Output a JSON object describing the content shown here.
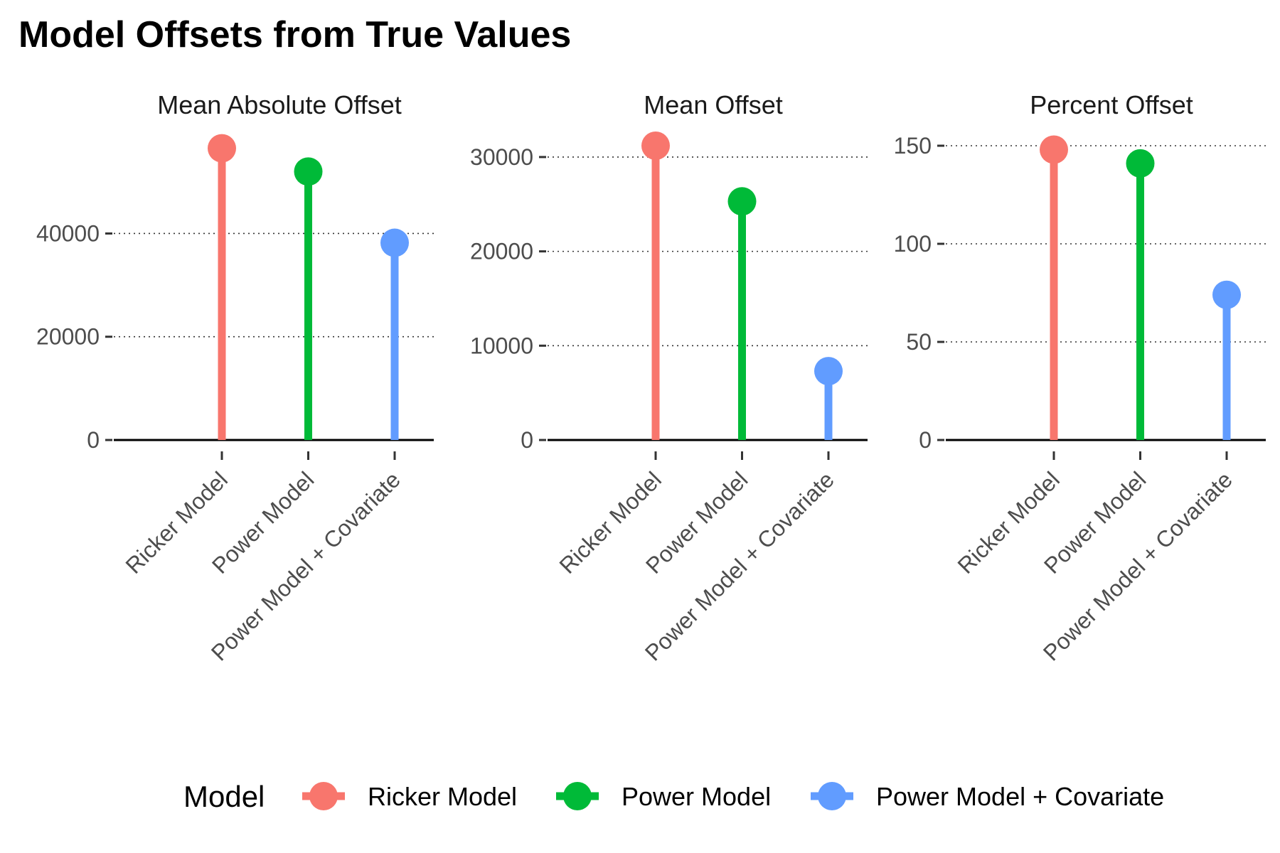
{
  "title": "Model Offsets from True Values",
  "chart_data": {
    "type": "lollipop",
    "categories": [
      "Ricker Model",
      "Power Model",
      "Power Model + Covariate"
    ],
    "colors": {
      "Ricker Model": "#F8766D",
      "Power Model": "#00BA38",
      "Power Model + Covariate": "#619CFF"
    },
    "grid": "horizontal dotted major gridlines",
    "panels": [
      {
        "title": "Mean Absolute Offset",
        "values": [
          56500,
          52000,
          38200
        ],
        "ylim": [
          0,
          57000
        ],
        "yticks": [
          0,
          20000,
          40000
        ],
        "ytick_labels": [
          "0",
          "20000",
          "40000"
        ]
      },
      {
        "title": "Mean Offset",
        "values": [
          31200,
          25300,
          7300
        ],
        "ylim": [
          0,
          31200
        ],
        "yticks": [
          0,
          10000,
          20000,
          30000
        ],
        "ytick_labels": [
          "0",
          "10000",
          "20000",
          "30000"
        ]
      },
      {
        "title": "Percent Offset",
        "values": [
          148,
          141,
          74
        ],
        "ylim": [
          0,
          150
        ],
        "yticks": [
          0,
          50,
          100,
          150
        ],
        "ytick_labels": [
          "0",
          "50",
          "100",
          "150"
        ]
      }
    ],
    "legend": {
      "title": "Model",
      "position": "bottom",
      "entries": [
        "Ricker Model",
        "Power Model",
        "Power Model + Covariate"
      ]
    }
  }
}
